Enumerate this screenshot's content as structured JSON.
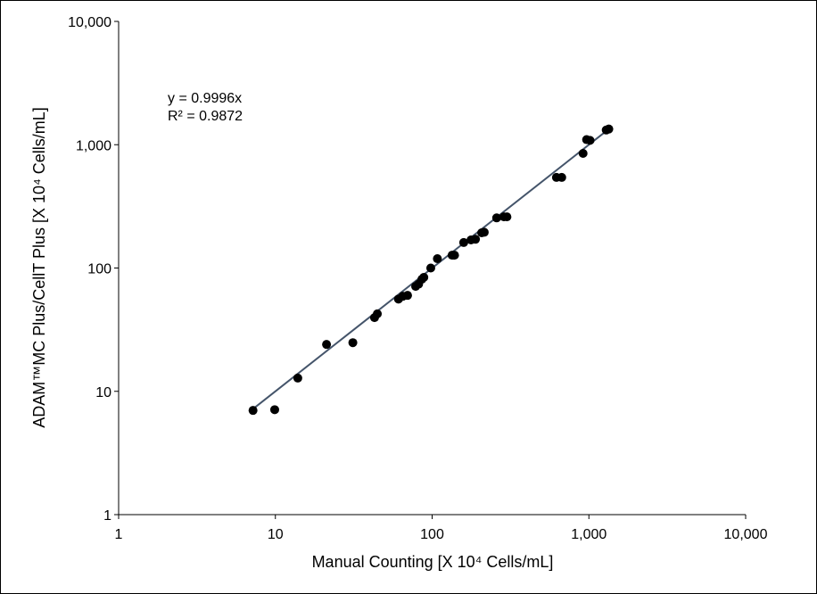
{
  "chart_data": {
    "type": "scatter",
    "title": "",
    "xlabel": "Manual Counting [X 10⁴ Cells/mL]",
    "ylabel": "ADAM™MC Plus/CellT Plus [X 10⁴ Cells/mL]",
    "xscale": "log",
    "yscale": "log",
    "xlim": [
      1,
      10000
    ],
    "ylim": [
      1,
      10000
    ],
    "xticks": [
      "1",
      "10",
      "100",
      "1,000",
      "10,000"
    ],
    "yticks": [
      "1",
      "10",
      "100",
      "1,000",
      "10,000"
    ],
    "tick_values": [
      1,
      10,
      100,
      1000,
      10000
    ],
    "grid": false,
    "legend": "none",
    "trendline": {
      "slope": 0.9996,
      "equation": "y = 0.9996x",
      "r2": "R² = 0.9872",
      "x_range": [
        7,
        1340
      ],
      "color": "#44546a"
    },
    "point_color": "#000000",
    "points": [
      [
        7.2,
        7.0
      ],
      [
        9.9,
        7.1
      ],
      [
        13.9,
        12.8
      ],
      [
        21.2,
        24
      ],
      [
        31.2,
        24.8
      ],
      [
        42.9,
        39.6
      ],
      [
        44.7,
        42.5
      ],
      [
        61,
        56
      ],
      [
        65,
        59
      ],
      [
        69.7,
        60
      ],
      [
        78.5,
        71
      ],
      [
        82,
        74
      ],
      [
        86,
        81
      ],
      [
        88.5,
        84
      ],
      [
        98,
        100
      ],
      [
        108,
        119
      ],
      [
        134,
        127
      ],
      [
        139,
        127
      ],
      [
        159,
        161
      ],
      [
        177,
        169
      ],
      [
        189,
        171
      ],
      [
        207,
        193
      ],
      [
        215,
        195
      ],
      [
        258,
        255
      ],
      [
        287,
        260
      ],
      [
        300,
        260
      ],
      [
        621,
        543
      ],
      [
        671,
        543
      ],
      [
        918,
        850
      ],
      [
        967,
        1100
      ],
      [
        1017,
        1085
      ],
      [
        1290,
        1315
      ],
      [
        1340,
        1340
      ]
    ]
  }
}
